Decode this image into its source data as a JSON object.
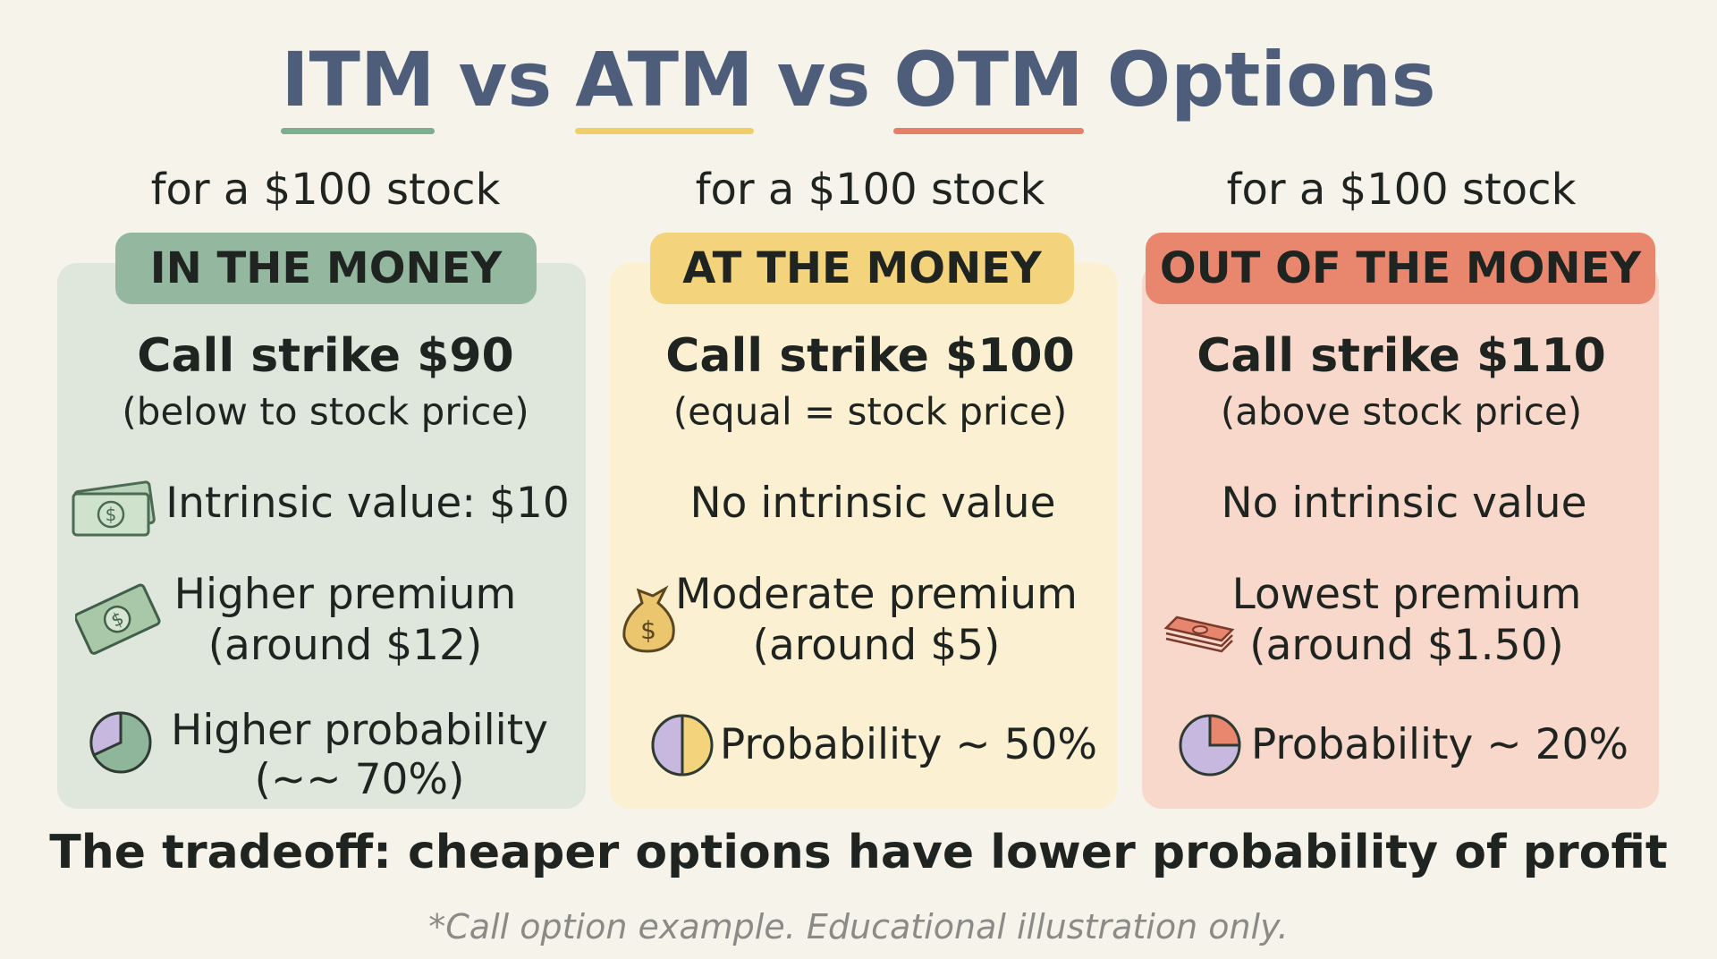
{
  "title": [
    "ITM",
    "vs",
    "ATM",
    "vs",
    "OTM",
    "Options"
  ],
  "columns": [
    {
      "context": "for a $100 stock",
      "heading": "IN THE MONEY",
      "strike": "Call strike $90",
      "strike_note": "(below to stock price)",
      "intrinsic": "Intrinsic value: $10",
      "premium": [
        "Higher premium",
        "(around $12)"
      ],
      "probability": [
        "Higher probability",
        "(~~ 70%)"
      ]
    },
    {
      "context": "for a $100 stock",
      "heading": "AT THE MONEY",
      "strike": "Call strike $100",
      "strike_note": "(equal = stock price)",
      "intrinsic": "No intrinsic value",
      "premium": [
        "Moderate premium",
        "(around $5)"
      ],
      "probability": [
        "Probability ~ 50%"
      ]
    },
    {
      "context": "for a $100 stock",
      "heading": "OUT OF THE MONEY",
      "strike": "Call strike $110",
      "strike_note": "(above stock price)",
      "intrinsic": "No intrinsic value",
      "premium": [
        "Lowest premium",
        "(around $1.50)"
      ],
      "probability": [
        "Probability ~ 20%"
      ]
    }
  ],
  "tradeoff": "The tradeoff: cheaper options have lower probability of profit",
  "disclaimer": "*Call option example. Educational illustration only."
}
